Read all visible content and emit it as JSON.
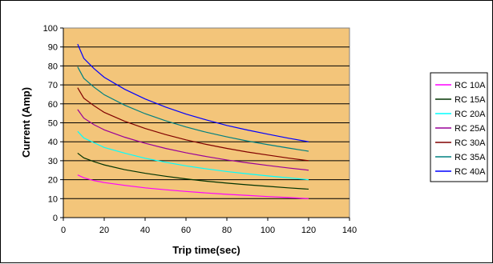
{
  "chart_data": {
    "type": "line",
    "title": "",
    "xlabel": "Trip time(sec)",
    "ylabel": "Current (Amp)",
    "xlim": [
      0,
      140
    ],
    "ylim": [
      0,
      100
    ],
    "xticks": [
      0,
      20,
      40,
      60,
      80,
      100,
      120,
      140
    ],
    "yticks": [
      0,
      10,
      20,
      30,
      40,
      50,
      60,
      70,
      80,
      90,
      100
    ],
    "grid": "horizontal",
    "plot_background": "#F3C57A",
    "legend_position": "right",
    "x": [
      7,
      10,
      15,
      20,
      30,
      40,
      50,
      60,
      70,
      80,
      90,
      100,
      110,
      120
    ],
    "series": [
      {
        "name": "RC 10A",
        "color": "#FF00FF",
        "values": [
          22.5,
          21,
          19.5,
          18.5,
          17,
          15.7,
          14.7,
          13.8,
          13,
          12.3,
          11.7,
          11.1,
          10.6,
          10
        ]
      },
      {
        "name": "RC 15A",
        "color": "#003300",
        "values": [
          34,
          31.5,
          29.5,
          27.8,
          25.3,
          23.4,
          21.8,
          20.4,
          19.2,
          18.2,
          17.3,
          16.5,
          15.7,
          15
        ]
      },
      {
        "name": "RC 20A",
        "color": "#00FFFF",
        "values": [
          45.5,
          42,
          39.5,
          37,
          34,
          31.3,
          29.2,
          27.3,
          25.7,
          24.3,
          23.1,
          22,
          21,
          20
        ]
      },
      {
        "name": "RC 25A",
        "color": "#990099",
        "values": [
          57,
          52.5,
          49,
          46.3,
          42.4,
          39.2,
          36.5,
          34.2,
          32.2,
          30.4,
          28.9,
          27.5,
          26.2,
          25
        ]
      },
      {
        "name": "RC 30A",
        "color": "#800000",
        "values": [
          68.5,
          63,
          59,
          55.5,
          50.8,
          47,
          43.8,
          41,
          38.6,
          36.5,
          34.6,
          33,
          31.4,
          30
        ]
      },
      {
        "name": "RC 35A",
        "color": "#008080",
        "values": [
          79.5,
          73.5,
          68.8,
          64.8,
          59.3,
          54.8,
          51.1,
          47.8,
          45,
          42.6,
          40.4,
          38.5,
          36.7,
          35
        ]
      },
      {
        "name": "RC 40A",
        "color": "#0000FF",
        "values": [
          91.5,
          84,
          78.6,
          74,
          67.7,
          62.6,
          58.3,
          54.6,
          51.5,
          48.6,
          46.2,
          44,
          41.9,
          40
        ]
      }
    ]
  }
}
